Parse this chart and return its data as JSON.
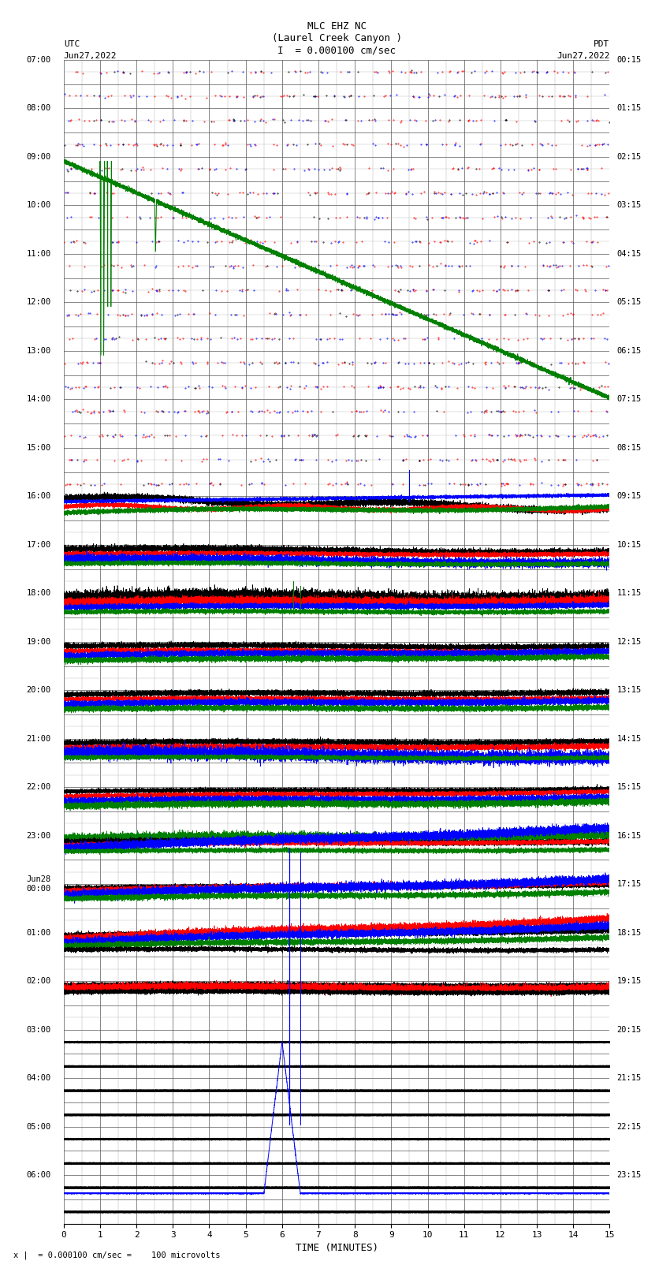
{
  "title_line1": "MLC EHZ NC",
  "title_line2": "(Laurel Creek Canyon )",
  "title_line3": "I  = 0.000100 cm/sec",
  "left_label_top": "UTC",
  "left_label_date": "Jun27,2022",
  "right_label_top": "PDT",
  "right_label_date": "Jun27,2022",
  "xlabel": "TIME (MINUTES)",
  "footer": "x |  = 0.000100 cm/sec =    100 microvolts",
  "xlim": [
    0,
    15
  ],
  "xticks": [
    0,
    1,
    2,
    3,
    4,
    5,
    6,
    7,
    8,
    9,
    10,
    11,
    12,
    13,
    14,
    15
  ],
  "bg_color": "#ffffff",
  "grid_color_major": "#555555",
  "grid_color_minor": "#aaaaaa",
  "utc_left_labels": [
    "07:00",
    "08:00",
    "09:00",
    "10:00",
    "11:00",
    "12:00",
    "13:00",
    "14:00",
    "15:00",
    "16:00",
    "17:00",
    "18:00",
    "19:00",
    "20:00",
    "21:00",
    "22:00",
    "23:00",
    "Jun28\n00:00",
    "01:00",
    "02:00",
    "03:00",
    "04:00",
    "05:00",
    "06:00"
  ],
  "pdt_right_labels": [
    "00:15",
    "01:15",
    "02:15",
    "03:15",
    "04:15",
    "05:15",
    "06:15",
    "07:15",
    "08:15",
    "09:15",
    "10:15",
    "11:15",
    "12:15",
    "13:15",
    "14:15",
    "15:15",
    "16:15",
    "17:15",
    "18:15",
    "19:15",
    "20:15",
    "21:15",
    "22:15",
    "23:15"
  ],
  "num_rows": 48,
  "seed": 42
}
